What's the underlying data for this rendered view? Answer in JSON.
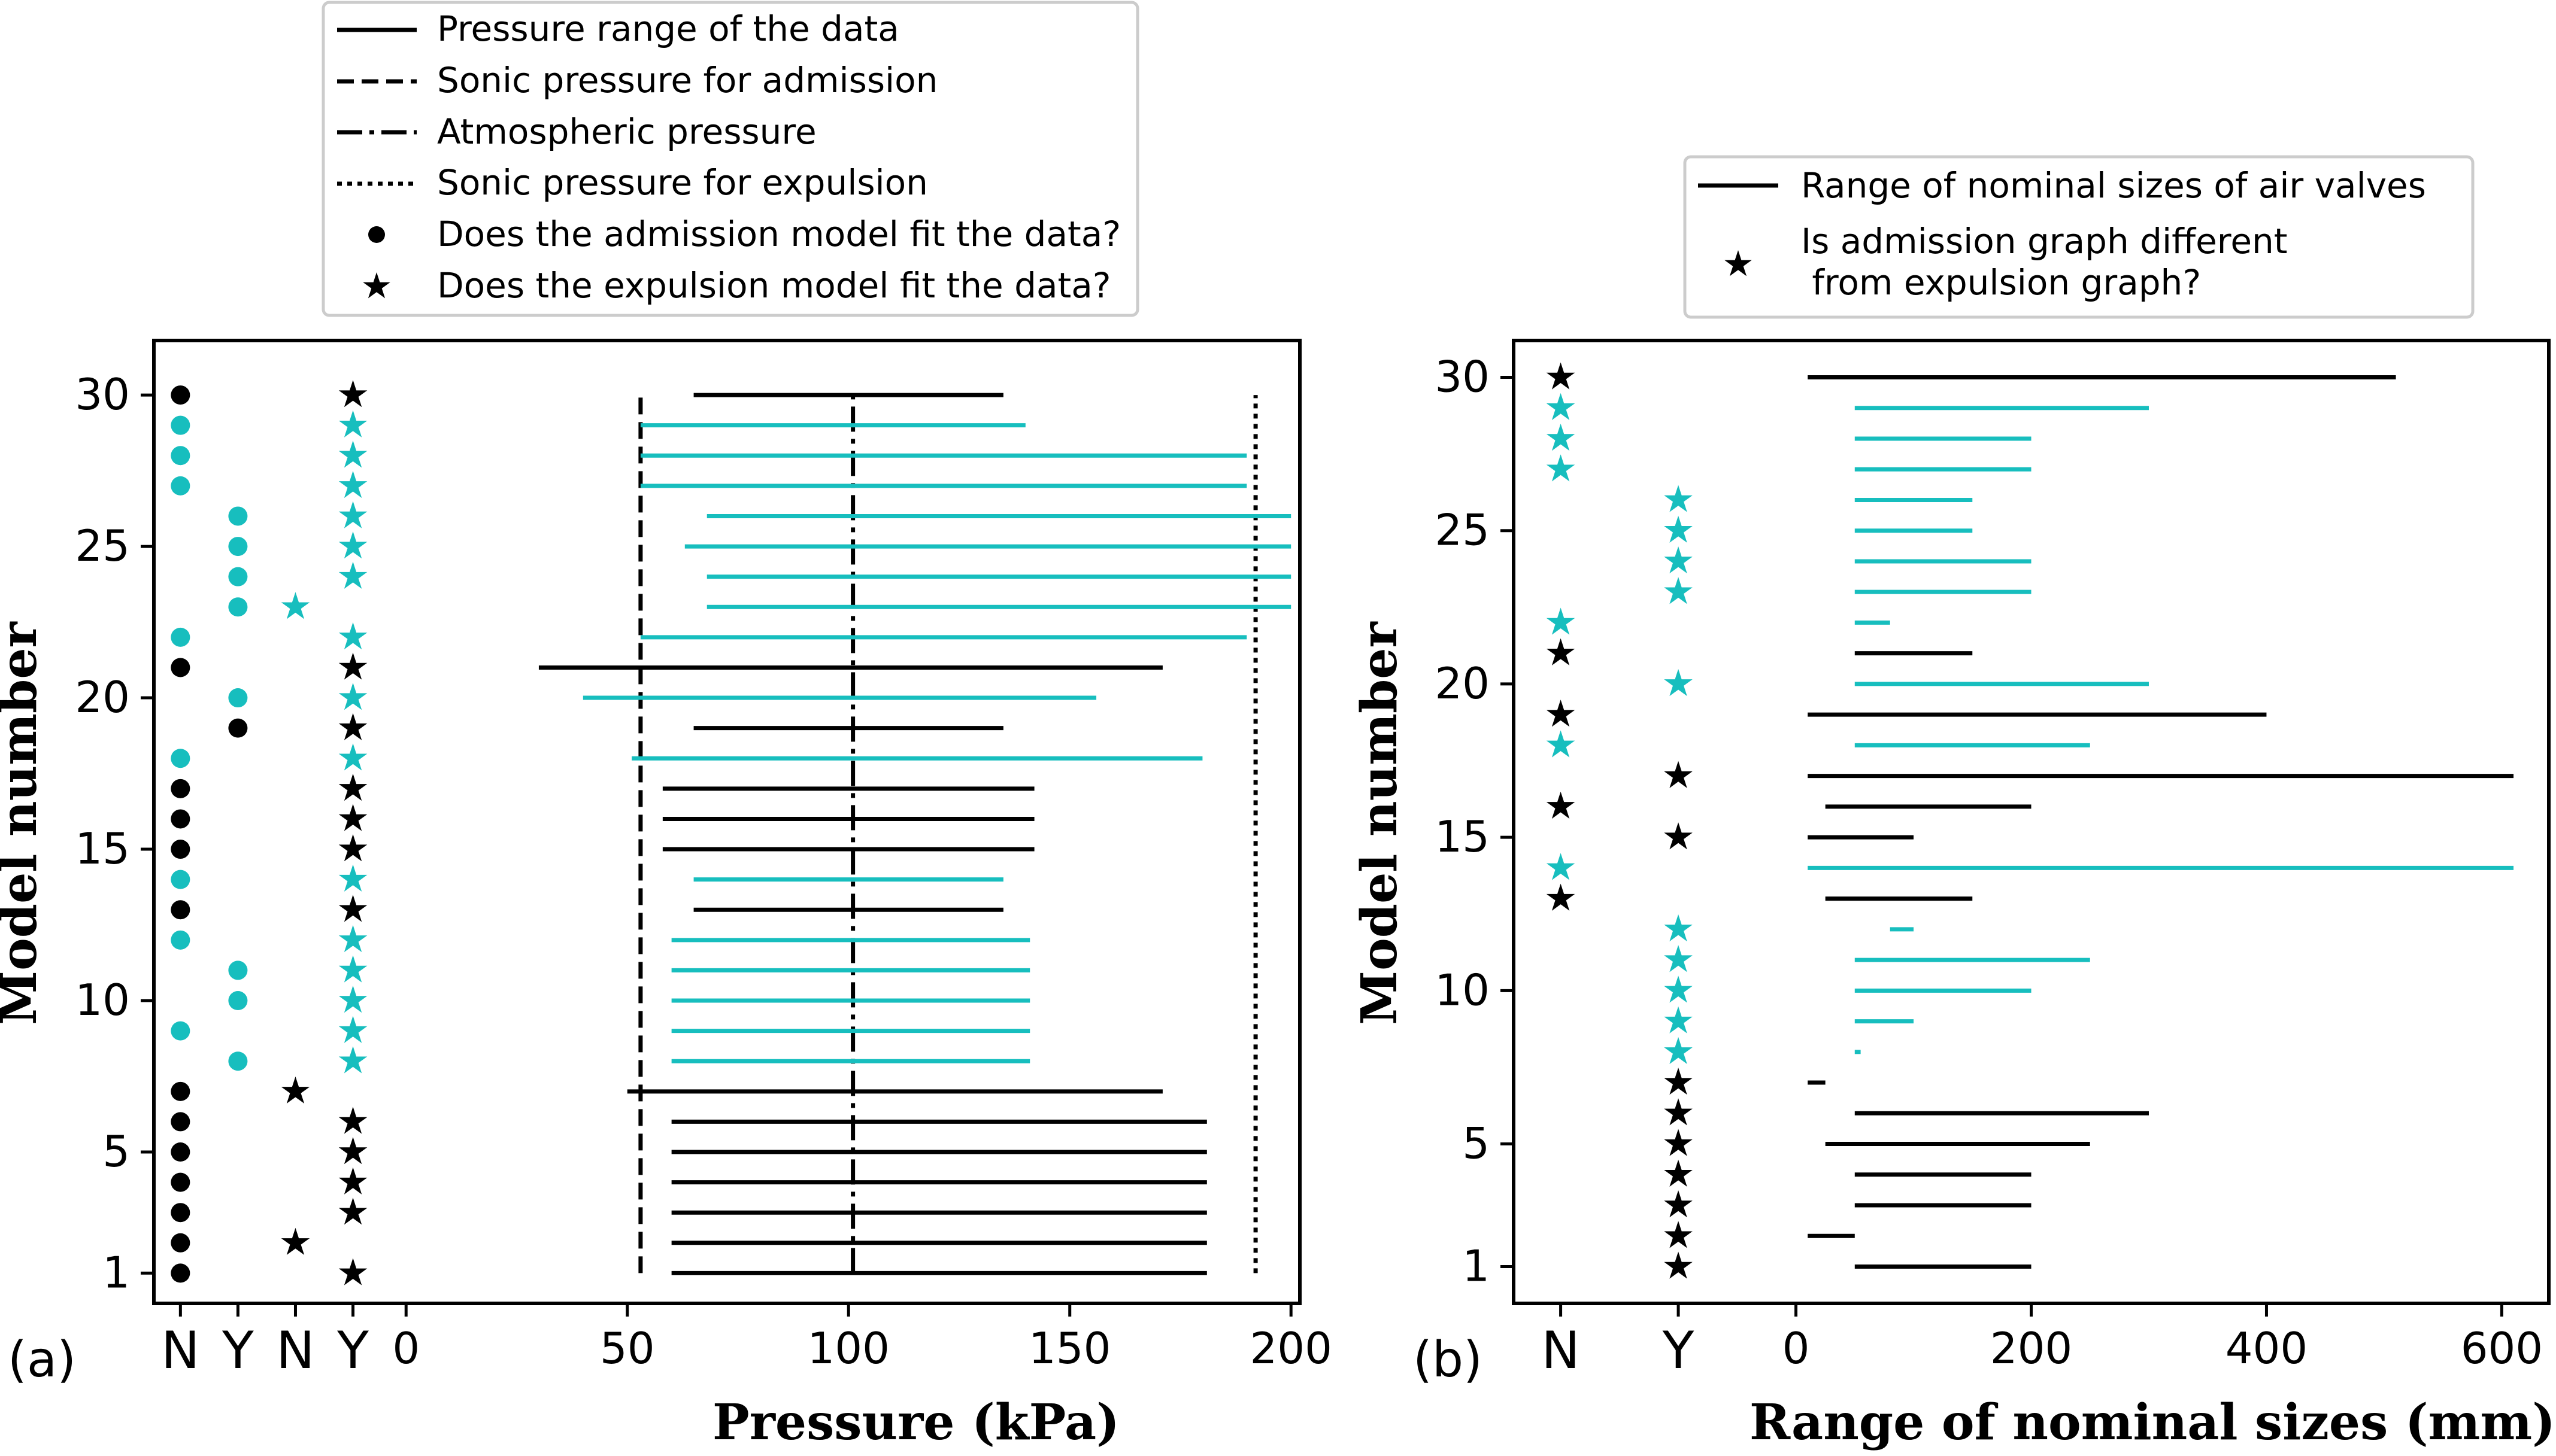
{
  "colors": {
    "black": "#000000",
    "cyan": "#17bebe"
  },
  "chart_data": [
    {
      "panel_label": "(a)",
      "type": "mixed",
      "ylabel": "Model number",
      "xlabel": "Pressure (kPa)",
      "ylim": [
        0,
        31.8
      ],
      "xlim": [
        -57,
        202
      ],
      "yticks": [
        1,
        5,
        10,
        15,
        20,
        25,
        30
      ],
      "ytick_labels": [
        "1",
        "5",
        "10",
        "15",
        "20",
        "25",
        "30"
      ],
      "xticks": [
        0,
        50,
        100,
        150,
        200
      ],
      "xtick_labels": [
        "0",
        "50",
        "100",
        "150",
        "200"
      ],
      "category_columns": [
        {
          "label": "N",
          "x": -51
        },
        {
          "label": "Y",
          "x": -38
        },
        {
          "label": "N",
          "x": -25
        },
        {
          "label": "Y",
          "x": -12
        }
      ],
      "reference_lines": [
        {
          "name": "sonic-admission",
          "x": 53,
          "style": "dashed",
          "y_range": [
            1,
            30
          ]
        },
        {
          "name": "atmospheric",
          "x": 101,
          "style": "dashdot",
          "y_range": [
            1,
            30
          ]
        },
        {
          "name": "sonic-expulsion",
          "x": 192,
          "style": "dotted",
          "y_range": [
            1,
            30
          ]
        }
      ],
      "admission_markers": [
        {
          "model": 1,
          "col": 0,
          "color": "black"
        },
        {
          "model": 2,
          "col": 0,
          "color": "black"
        },
        {
          "model": 3,
          "col": 0,
          "color": "black"
        },
        {
          "model": 4,
          "col": 0,
          "color": "black"
        },
        {
          "model": 5,
          "col": 0,
          "color": "black"
        },
        {
          "model": 6,
          "col": 0,
          "color": "black"
        },
        {
          "model": 7,
          "col": 0,
          "color": "black"
        },
        {
          "model": 8,
          "col": 1,
          "color": "cyan"
        },
        {
          "model": 9,
          "col": 0,
          "color": "cyan"
        },
        {
          "model": 10,
          "col": 1,
          "color": "cyan"
        },
        {
          "model": 11,
          "col": 1,
          "color": "cyan"
        },
        {
          "model": 12,
          "col": 0,
          "color": "cyan"
        },
        {
          "model": 13,
          "col": 0,
          "color": "black"
        },
        {
          "model": 14,
          "col": 0,
          "color": "cyan"
        },
        {
          "model": 15,
          "col": 0,
          "color": "black"
        },
        {
          "model": 16,
          "col": 0,
          "color": "black"
        },
        {
          "model": 17,
          "col": 0,
          "color": "black"
        },
        {
          "model": 18,
          "col": 0,
          "color": "cyan"
        },
        {
          "model": 19,
          "col": 1,
          "color": "black"
        },
        {
          "model": 20,
          "col": 1,
          "color": "cyan"
        },
        {
          "model": 21,
          "col": 0,
          "color": "black"
        },
        {
          "model": 22,
          "col": 0,
          "color": "cyan"
        },
        {
          "model": 23,
          "col": 1,
          "color": "cyan"
        },
        {
          "model": 24,
          "col": 1,
          "color": "cyan"
        },
        {
          "model": 25,
          "col": 1,
          "color": "cyan"
        },
        {
          "model": 26,
          "col": 1,
          "color": "cyan"
        },
        {
          "model": 27,
          "col": 0,
          "color": "cyan"
        },
        {
          "model": 28,
          "col": 0,
          "color": "cyan"
        },
        {
          "model": 29,
          "col": 0,
          "color": "cyan"
        },
        {
          "model": 30,
          "col": 0,
          "color": "black"
        }
      ],
      "expulsion_markers": [
        {
          "model": 1,
          "col": 3,
          "color": "black"
        },
        {
          "model": 2,
          "col": 2,
          "color": "black"
        },
        {
          "model": 3,
          "col": 3,
          "color": "black"
        },
        {
          "model": 4,
          "col": 3,
          "color": "black"
        },
        {
          "model": 5,
          "col": 3,
          "color": "black"
        },
        {
          "model": 6,
          "col": 3,
          "color": "black"
        },
        {
          "model": 7,
          "col": 2,
          "color": "black"
        },
        {
          "model": 8,
          "col": 3,
          "color": "cyan"
        },
        {
          "model": 9,
          "col": 3,
          "color": "cyan"
        },
        {
          "model": 10,
          "col": 3,
          "color": "cyan"
        },
        {
          "model": 11,
          "col": 3,
          "color": "cyan"
        },
        {
          "model": 12,
          "col": 3,
          "color": "cyan"
        },
        {
          "model": 13,
          "col": 3,
          "color": "black"
        },
        {
          "model": 14,
          "col": 3,
          "color": "cyan"
        },
        {
          "model": 15,
          "col": 3,
          "color": "black"
        },
        {
          "model": 16,
          "col": 3,
          "color": "black"
        },
        {
          "model": 17,
          "col": 3,
          "color": "black"
        },
        {
          "model": 18,
          "col": 3,
          "color": "cyan"
        },
        {
          "model": 19,
          "col": 3,
          "color": "black"
        },
        {
          "model": 20,
          "col": 3,
          "color": "cyan"
        },
        {
          "model": 21,
          "col": 3,
          "color": "black"
        },
        {
          "model": 22,
          "col": 3,
          "color": "cyan"
        },
        {
          "model": 23,
          "col": 2,
          "color": "cyan"
        },
        {
          "model": 24,
          "col": 3,
          "color": "cyan"
        },
        {
          "model": 25,
          "col": 3,
          "color": "cyan"
        },
        {
          "model": 26,
          "col": 3,
          "color": "cyan"
        },
        {
          "model": 27,
          "col": 3,
          "color": "cyan"
        },
        {
          "model": 28,
          "col": 3,
          "color": "cyan"
        },
        {
          "model": 29,
          "col": 3,
          "color": "cyan"
        },
        {
          "model": 30,
          "col": 3,
          "color": "black"
        }
      ],
      "ranges": [
        {
          "model": 1,
          "min": 60,
          "max": 181,
          "color": "black"
        },
        {
          "model": 2,
          "min": 60,
          "max": 181,
          "color": "black"
        },
        {
          "model": 3,
          "min": 60,
          "max": 181,
          "color": "black"
        },
        {
          "model": 4,
          "min": 60,
          "max": 181,
          "color": "black"
        },
        {
          "model": 5,
          "min": 60,
          "max": 181,
          "color": "black"
        },
        {
          "model": 6,
          "min": 60,
          "max": 181,
          "color": "black"
        },
        {
          "model": 7,
          "min": 50,
          "max": 171,
          "color": "black"
        },
        {
          "model": 8,
          "min": 60,
          "max": 141,
          "color": "cyan"
        },
        {
          "model": 9,
          "min": 60,
          "max": 141,
          "color": "cyan"
        },
        {
          "model": 10,
          "min": 60,
          "max": 141,
          "color": "cyan"
        },
        {
          "model": 11,
          "min": 60,
          "max": 141,
          "color": "cyan"
        },
        {
          "model": 12,
          "min": 60,
          "max": 141,
          "color": "cyan"
        },
        {
          "model": 13,
          "min": 65,
          "max": 135,
          "color": "black"
        },
        {
          "model": 14,
          "min": 65,
          "max": 135,
          "color": "cyan"
        },
        {
          "model": 15,
          "min": 58,
          "max": 142,
          "color": "black"
        },
        {
          "model": 16,
          "min": 58,
          "max": 142,
          "color": "black"
        },
        {
          "model": 17,
          "min": 58,
          "max": 142,
          "color": "black"
        },
        {
          "model": 18,
          "min": 51,
          "max": 180,
          "color": "cyan"
        },
        {
          "model": 19,
          "min": 65,
          "max": 135,
          "color": "black"
        },
        {
          "model": 20,
          "min": 40,
          "max": 156,
          "color": "cyan"
        },
        {
          "model": 21,
          "min": 30,
          "max": 171,
          "color": "black"
        },
        {
          "model": 22,
          "min": 53,
          "max": 190,
          "color": "cyan"
        },
        {
          "model": 23,
          "min": 68,
          "max": 200,
          "color": "cyan"
        },
        {
          "model": 24,
          "min": 68,
          "max": 200,
          "color": "cyan"
        },
        {
          "model": 25,
          "min": 63,
          "max": 200,
          "color": "cyan"
        },
        {
          "model": 26,
          "min": 68,
          "max": 200,
          "color": "cyan"
        },
        {
          "model": 27,
          "min": 53,
          "max": 190,
          "color": "cyan"
        },
        {
          "model": 28,
          "min": 53,
          "max": 190,
          "color": "cyan"
        },
        {
          "model": 29,
          "min": 53,
          "max": 140,
          "color": "cyan"
        },
        {
          "model": 30,
          "min": 65,
          "max": 135,
          "color": "black"
        }
      ],
      "legend": {
        "position": "top",
        "entries": [
          {
            "style": "solid",
            "label": "Pressure range of the data"
          },
          {
            "style": "dashed",
            "label": "Sonic pressure for admission"
          },
          {
            "style": "dashdot",
            "label": "Atmospheric pressure"
          },
          {
            "style": "dotted",
            "label": "Sonic pressure for expulsion"
          },
          {
            "style": "dot",
            "label": "Does the admission model fit the data?"
          },
          {
            "style": "star",
            "label": "Does the expulsion model fit the data?"
          }
        ]
      }
    },
    {
      "panel_label": "(b)",
      "type": "mixed",
      "ylabel": "Model number",
      "xlabel": "Range of nominal sizes (mm)",
      "ylim": [
        -0.2,
        31.2
      ],
      "xlim": [
        -240,
        640
      ],
      "yticks": [
        1,
        5,
        10,
        15,
        20,
        25,
        30
      ],
      "ytick_labels": [
        "1",
        "5",
        "10",
        "15",
        "20",
        "25",
        "30"
      ],
      "xticks": [
        0,
        200,
        400,
        600
      ],
      "xtick_labels": [
        "0",
        "200",
        "400",
        "600"
      ],
      "category_columns": [
        {
          "label": "N",
          "x": -200
        },
        {
          "label": "Y",
          "x": -100
        }
      ],
      "markers": [
        {
          "model": 1,
          "col": 1,
          "color": "black"
        },
        {
          "model": 2,
          "col": 1,
          "color": "black"
        },
        {
          "model": 3,
          "col": 1,
          "color": "black"
        },
        {
          "model": 4,
          "col": 1,
          "color": "black"
        },
        {
          "model": 5,
          "col": 1,
          "color": "black"
        },
        {
          "model": 6,
          "col": 1,
          "color": "black"
        },
        {
          "model": 7,
          "col": 1,
          "color": "black"
        },
        {
          "model": 8,
          "col": 1,
          "color": "cyan"
        },
        {
          "model": 9,
          "col": 1,
          "color": "cyan"
        },
        {
          "model": 10,
          "col": 1,
          "color": "cyan"
        },
        {
          "model": 11,
          "col": 1,
          "color": "cyan"
        },
        {
          "model": 12,
          "col": 1,
          "color": "cyan"
        },
        {
          "model": 13,
          "col": 0,
          "color": "black"
        },
        {
          "model": 14,
          "col": 0,
          "color": "cyan"
        },
        {
          "model": 15,
          "col": 1,
          "color": "black"
        },
        {
          "model": 16,
          "col": 0,
          "color": "black"
        },
        {
          "model": 17,
          "col": 1,
          "color": "black"
        },
        {
          "model": 18,
          "col": 0,
          "color": "cyan"
        },
        {
          "model": 19,
          "col": 0,
          "color": "black"
        },
        {
          "model": 20,
          "col": 1,
          "color": "cyan"
        },
        {
          "model": 21,
          "col": 0,
          "color": "black"
        },
        {
          "model": 22,
          "col": 0,
          "color": "cyan"
        },
        {
          "model": 23,
          "col": 1,
          "color": "cyan"
        },
        {
          "model": 24,
          "col": 1,
          "color": "cyan"
        },
        {
          "model": 25,
          "col": 1,
          "color": "cyan"
        },
        {
          "model": 26,
          "col": 1,
          "color": "cyan"
        },
        {
          "model": 27,
          "col": 0,
          "color": "cyan"
        },
        {
          "model": 28,
          "col": 0,
          "color": "cyan"
        },
        {
          "model": 29,
          "col": 0,
          "color": "cyan"
        },
        {
          "model": 30,
          "col": 0,
          "color": "black"
        }
      ],
      "ranges": [
        {
          "model": 1,
          "min": 50,
          "max": 200,
          "color": "black"
        },
        {
          "model": 2,
          "min": 10,
          "max": 50,
          "color": "black"
        },
        {
          "model": 3,
          "min": 50,
          "max": 200,
          "color": "black"
        },
        {
          "model": 4,
          "min": 50,
          "max": 200,
          "color": "black"
        },
        {
          "model": 5,
          "min": 25,
          "max": 250,
          "color": "black"
        },
        {
          "model": 6,
          "min": 50,
          "max": 300,
          "color": "black"
        },
        {
          "model": 7,
          "min": 10,
          "max": 25,
          "color": "black"
        },
        {
          "model": 8,
          "min": 50,
          "max": 55,
          "color": "cyan"
        },
        {
          "model": 9,
          "min": 50,
          "max": 100,
          "color": "cyan"
        },
        {
          "model": 10,
          "min": 50,
          "max": 200,
          "color": "cyan"
        },
        {
          "model": 11,
          "min": 50,
          "max": 250,
          "color": "cyan"
        },
        {
          "model": 12,
          "min": 80,
          "max": 100,
          "color": "cyan"
        },
        {
          "model": 13,
          "min": 25,
          "max": 150,
          "color": "black"
        },
        {
          "model": 14,
          "min": 10,
          "max": 610,
          "color": "cyan"
        },
        {
          "model": 15,
          "min": 10,
          "max": 100,
          "color": "black"
        },
        {
          "model": 16,
          "min": 25,
          "max": 200,
          "color": "black"
        },
        {
          "model": 17,
          "min": 10,
          "max": 610,
          "color": "black"
        },
        {
          "model": 18,
          "min": 50,
          "max": 250,
          "color": "cyan"
        },
        {
          "model": 19,
          "min": 10,
          "max": 400,
          "color": "black"
        },
        {
          "model": 20,
          "min": 50,
          "max": 300,
          "color": "cyan"
        },
        {
          "model": 21,
          "min": 50,
          "max": 150,
          "color": "black"
        },
        {
          "model": 22,
          "min": 50,
          "max": 80,
          "color": "cyan"
        },
        {
          "model": 23,
          "min": 50,
          "max": 200,
          "color": "cyan"
        },
        {
          "model": 24,
          "min": 50,
          "max": 200,
          "color": "cyan"
        },
        {
          "model": 25,
          "min": 50,
          "max": 150,
          "color": "cyan"
        },
        {
          "model": 26,
          "min": 50,
          "max": 150,
          "color": "cyan"
        },
        {
          "model": 27,
          "min": 50,
          "max": 200,
          "color": "cyan"
        },
        {
          "model": 28,
          "min": 50,
          "max": 200,
          "color": "cyan"
        },
        {
          "model": 29,
          "min": 50,
          "max": 300,
          "color": "cyan"
        },
        {
          "model": 30,
          "min": 10,
          "max": 510,
          "color": "black"
        }
      ],
      "legend": {
        "position": "top",
        "entries": [
          {
            "style": "solid",
            "label": "Range of nominal sizes of air valves"
          },
          {
            "style": "star",
            "label_lines": [
              "Is admission graph different",
              " from expulsion graph?"
            ]
          }
        ]
      }
    }
  ]
}
